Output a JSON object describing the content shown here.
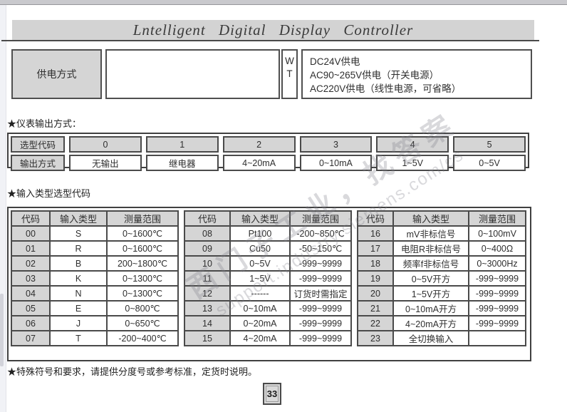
{
  "title": "Lntelligent  Digital  Display  Controller",
  "watermark": {
    "line1": "西门子工业，找答案",
    "line2": "support.industry.siemens.com/cs"
  },
  "power": {
    "label": "供电方式",
    "codes": [
      "W",
      "T"
    ],
    "options": [
      "DC24V供电",
      "AC90~265V供电（开关电源）",
      "AC220V供电（线性电源，可省略）"
    ]
  },
  "output_section": {
    "heading": "★仪表输出方式：",
    "row1_label": "选型代码",
    "row2_label": "输出方式",
    "codes": [
      "0",
      "1",
      "2",
      "3",
      "4",
      "5"
    ],
    "modes": [
      "无输出",
      "继电器",
      "4~20mA",
      "0~10mA",
      "1~5V",
      "0~5V"
    ]
  },
  "input_section": {
    "heading": "★输入类型选型代码",
    "columns": [
      "代码",
      "输入类型",
      "测量范围"
    ],
    "groups": [
      {
        "rows": [
          [
            "00",
            "S",
            "0~1600℃"
          ],
          [
            "01",
            "R",
            "0~1600℃"
          ],
          [
            "02",
            "B",
            "200~1800℃"
          ],
          [
            "03",
            "K",
            "0~1300℃"
          ],
          [
            "04",
            "N",
            "0~1300℃"
          ],
          [
            "05",
            "E",
            "0~800℃"
          ],
          [
            "06",
            "J",
            "0~650℃"
          ],
          [
            "07",
            "T",
            "-200~400℃"
          ]
        ]
      },
      {
        "rows": [
          [
            "08",
            "Pt100",
            "-200~850℃"
          ],
          [
            "09",
            "Cu50",
            "-50~150℃"
          ],
          [
            "10",
            "0~5V",
            "-999~9999"
          ],
          [
            "11",
            "1~5V",
            "-999~9999"
          ],
          [
            "12",
            "------",
            "订货时需指定"
          ],
          [
            "13",
            "0~10mA",
            "-999~9999"
          ],
          [
            "14",
            "0~20mA",
            "-999~9999"
          ],
          [
            "15",
            "4~20mA",
            "-999~9999"
          ]
        ]
      },
      {
        "rows": [
          [
            "16",
            "mV非标信号",
            "0~100mV"
          ],
          [
            "17",
            "电阻R非标信号",
            "0~400Ω"
          ],
          [
            "18",
            "频率f非标信号",
            "0~3000Hz"
          ],
          [
            "19",
            "0~5V开方",
            "-999~9999"
          ],
          [
            "20",
            "1~5V开方",
            "-999~9999"
          ],
          [
            "21",
            "0~10mA开方",
            "-999~9999"
          ],
          [
            "22",
            "4~20mA开方",
            "-999~9999"
          ],
          [
            "23",
            "全切换输入",
            ""
          ]
        ]
      }
    ]
  },
  "footnote": "★特殊符号和要求，请提供分度号或参考标准，定货时说明。",
  "page_number": "33",
  "colors": {
    "cell_gray": "#d5d5d5",
    "border_dark": "#4a4a4a",
    "title_bar_gray": "#d3d3d3"
  }
}
